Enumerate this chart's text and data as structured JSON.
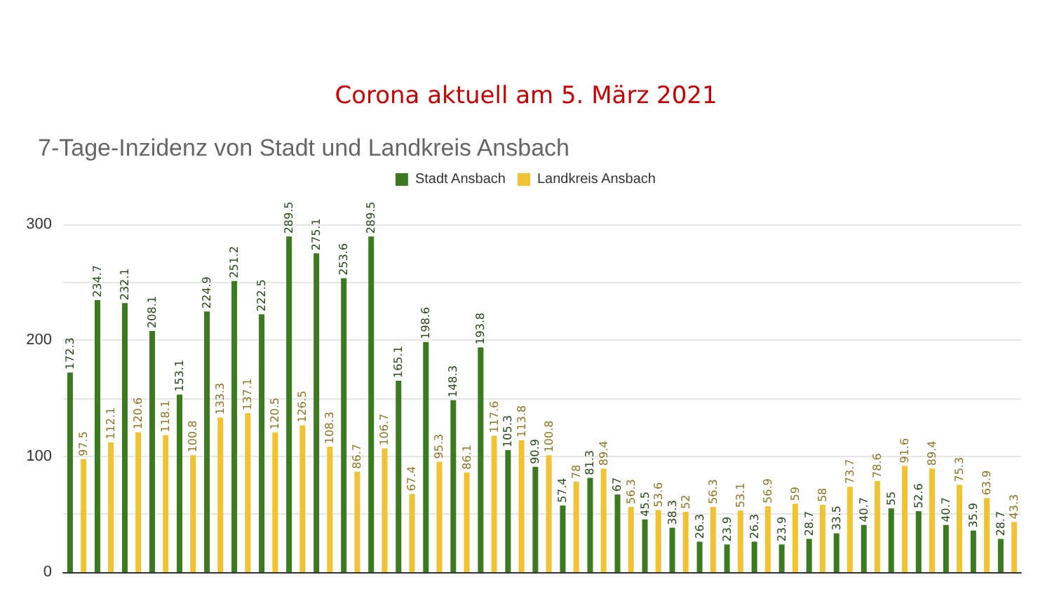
{
  "chart_data": {
    "type": "bar",
    "title": "Corona aktuell am 5. März 2021",
    "subtitle": "7-Tage-Inzidenz von Stadt und Landkreis Ansbach",
    "categories": [
      null,
      null,
      null,
      null,
      null,
      null,
      null,
      null,
      null,
      null,
      null,
      null,
      null,
      null,
      null,
      null,
      null,
      null,
      null,
      null,
      null,
      null,
      null,
      null,
      null,
      null,
      null,
      null,
      null,
      null,
      null,
      null,
      null,
      null,
      null
    ],
    "series": [
      {
        "name": "Stadt Ansbach",
        "color": "#3b7a1f",
        "values": [
          172.3,
          234.7,
          232.1,
          208.1,
          153.1,
          224.9,
          251.2,
          222.5,
          289.5,
          275.1,
          253.6,
          289.5,
          165.1,
          198.6,
          148.3,
          193.8,
          105.3,
          90.9,
          57.4,
          81.3,
          67,
          45.5,
          38.3,
          26.3,
          23.9,
          26.3,
          23.9,
          28.7,
          33.5,
          40.7,
          55,
          52.6,
          40.7,
          35.9,
          28.7
        ]
      },
      {
        "name": "Landkreis Ansbach",
        "color": "#f1c232",
        "values": [
          97.5,
          112.1,
          120.6,
          118.1,
          100.8,
          133.3,
          137.1,
          120.5,
          126.5,
          108.3,
          86.7,
          106.7,
          67.4,
          95.3,
          86.1,
          117.6,
          113.8,
          100.8,
          78,
          89.4,
          56.3,
          53.6,
          52,
          56.3,
          53.1,
          56.9,
          59,
          58,
          73.7,
          78.6,
          91.6,
          89.4,
          75.3,
          63.9,
          43.3
        ]
      }
    ],
    "ylim": [
      0,
      300
    ],
    "yticks": [
      0,
      {
        "value": 50,
        "label": null
      },
      100,
      {
        "value": 150,
        "label": null
      },
      200,
      {
        "value": 250,
        "label": null
      },
      300
    ],
    "grid": "y",
    "legend": "top",
    "data_labels": true
  }
}
